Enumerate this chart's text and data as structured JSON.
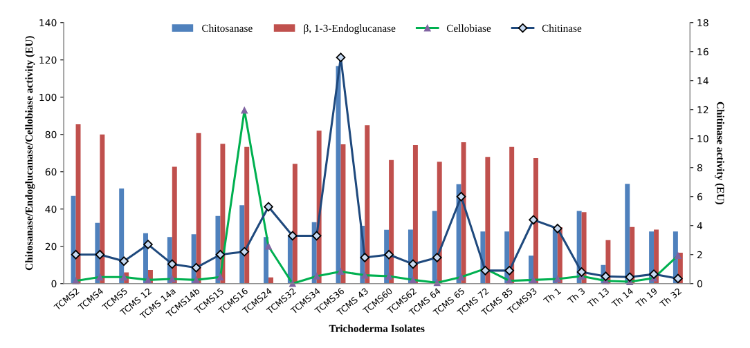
{
  "chart_data": {
    "type": "bar",
    "xlabel": "Trichoderma Isolates",
    "ylabel": "Chitosanase/Endoglucanase/Cellobiase activity (EU)",
    "y2label": "Chitinase activity (EU)",
    "categories": [
      "TCMS2",
      "TCMS4",
      "TCMS5",
      "TCMS 12",
      "TCMS 14a",
      "TCMS14b",
      "TCMS15",
      "TCMS16",
      "TCMS24",
      "TCMS32",
      "TCMS34",
      "TCMS36",
      "TCMS 43",
      "TCMS60",
      "TCMS62",
      "TCMS 64",
      "TCMS 65",
      "TCMS 72",
      "TCMS 85",
      "TCMS93",
      "Th 1",
      "Th 3",
      "Th 13",
      "Th 14",
      "Th 19",
      "Th 32"
    ],
    "series": [
      {
        "name": "Chitosanase",
        "color": "#4f81bd",
        "values": [
          47,
          32.6,
          51,
          27,
          25,
          26.5,
          36.3,
          42,
          25,
          26,
          33,
          116.7,
          31,
          28.9,
          29,
          39,
          53.3,
          28,
          28,
          15,
          29,
          39,
          10,
          53.5,
          28,
          28
        ]
      },
      {
        "name": "β, 1-3-Endoglucanase",
        "color": "#c0504d",
        "values": [
          85.5,
          80,
          6,
          7.3,
          62.7,
          80.7,
          75,
          73.3,
          3.3,
          64.3,
          82,
          74.7,
          85,
          66.3,
          74.4,
          65.4,
          75.8,
          68,
          73.3,
          67.3,
          30.3,
          38.3,
          23.3,
          30.4,
          29,
          16.6
        ]
      },
      {
        "name": "Cellobiase",
        "type": "line",
        "color": "#00b050",
        "marker": "triangle",
        "values": [
          1.5,
          3.5,
          3.5,
          2,
          2.5,
          2,
          3.5,
          93,
          20,
          0,
          4,
          6.5,
          4.5,
          4,
          2,
          0.5,
          3.5,
          8,
          1.5,
          2,
          2.5,
          4,
          1.5,
          1,
          3,
          15
        ]
      },
      {
        "name": "Chitinase",
        "type": "line",
        "axis": "y2",
        "color": "#1f497d",
        "marker": "diamond",
        "values": [
          2,
          2,
          1.55,
          2.7,
          1.35,
          1.1,
          2,
          2.2,
          5.3,
          3.3,
          3.3,
          15.6,
          1.8,
          2,
          1.35,
          1.8,
          6,
          0.9,
          0.9,
          4.4,
          3.8,
          0.8,
          0.5,
          0.45,
          0.65,
          0.35
        ]
      }
    ],
    "ylim": [
      0,
      140
    ],
    "yticks": [
      0,
      20,
      40,
      60,
      80,
      100,
      120,
      140
    ],
    "y2lim": [
      0,
      18
    ],
    "y2ticks": [
      0,
      2,
      4,
      6,
      8,
      10,
      12,
      14,
      16,
      18
    ],
    "grid": false,
    "legend": "top"
  }
}
